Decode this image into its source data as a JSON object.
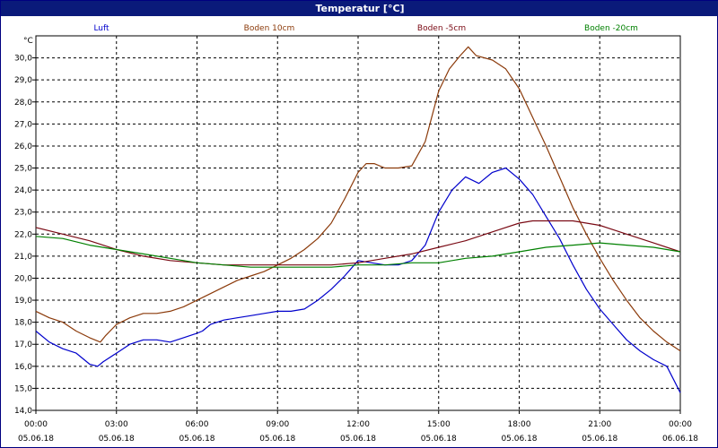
{
  "window": {
    "title": "Temperatur [°C]"
  },
  "chart_data": {
    "type": "line",
    "ylabel": "°C",
    "ylim": [
      14.0,
      31.0
    ],
    "y_ticks": [
      "14,0",
      "15,0",
      "16,0",
      "17,0",
      "18,0",
      "19,0",
      "20,0",
      "21,0",
      "22,0",
      "23,0",
      "24,0",
      "25,0",
      "26,0",
      "27,0",
      "28,0",
      "29,0",
      "30,0"
    ],
    "x_ticks": [
      {
        "time": "00:00",
        "date": "05.06.18"
      },
      {
        "time": "03:00",
        "date": "05.06.18"
      },
      {
        "time": "06:00",
        "date": "05.06.18"
      },
      {
        "time": "09:00",
        "date": "05.06.18"
      },
      {
        "time": "12:00",
        "date": "05.06.18"
      },
      {
        "time": "15:00",
        "date": "05.06.18"
      },
      {
        "time": "18:00",
        "date": "05.06.18"
      },
      {
        "time": "21:00",
        "date": "05.06.18"
      },
      {
        "time": "00:00",
        "date": "06.06.18"
      }
    ],
    "xlim_hours": [
      0,
      24
    ],
    "grid": true,
    "legend_position": "top",
    "series": [
      {
        "name": "Luft",
        "color": "#0000cc",
        "x": [
          0,
          0.5,
          1,
          1.5,
          2,
          2.3,
          2.5,
          3,
          3.5,
          4,
          4.5,
          5,
          5.5,
          6,
          6.2,
          6.5,
          7,
          7.5,
          8,
          8.5,
          9,
          9.5,
          10,
          10.5,
          11,
          11.5,
          12,
          12.5,
          13,
          13.5,
          14,
          14.5,
          15,
          15.5,
          16,
          16.5,
          17,
          17.5,
          18,
          18.5,
          19,
          19.5,
          20,
          20.5,
          21,
          21.5,
          22,
          22.5,
          23,
          23.5,
          24
        ],
        "values": [
          17.6,
          17.1,
          16.8,
          16.6,
          16.1,
          16.0,
          16.2,
          16.6,
          17.0,
          17.2,
          17.2,
          17.1,
          17.3,
          17.5,
          17.6,
          17.9,
          18.1,
          18.2,
          18.3,
          18.4,
          18.5,
          18.5,
          18.6,
          19.0,
          19.5,
          20.1,
          20.8,
          20.7,
          20.6,
          20.6,
          20.8,
          21.5,
          23.0,
          24.0,
          24.6,
          24.3,
          24.8,
          25.0,
          24.5,
          23.8,
          22.8,
          21.8,
          20.6,
          19.5,
          18.6,
          17.9,
          17.2,
          16.7,
          16.3,
          16.0,
          14.8
        ]
      },
      {
        "name": "Boden 10cm",
        "color": "#8b3a0a",
        "x": [
          0,
          0.5,
          1,
          1.5,
          2,
          2.4,
          2.6,
          3,
          3.5,
          4,
          4.5,
          5,
          5.5,
          6,
          6.5,
          7,
          7.5,
          8,
          8.5,
          9,
          9.5,
          10,
          10.5,
          11,
          11.5,
          12,
          12.3,
          12.6,
          13,
          13.5,
          14,
          14.5,
          15,
          15.4,
          15.8,
          16.1,
          16.4,
          17,
          17.5,
          18,
          18.5,
          19,
          19.5,
          20,
          20.5,
          21,
          21.5,
          22,
          22.5,
          23,
          23.5,
          24
        ],
        "values": [
          18.5,
          18.2,
          18.0,
          17.6,
          17.3,
          17.1,
          17.4,
          17.9,
          18.2,
          18.4,
          18.4,
          18.5,
          18.7,
          19.0,
          19.3,
          19.6,
          19.9,
          20.1,
          20.3,
          20.6,
          20.9,
          21.3,
          21.8,
          22.5,
          23.6,
          24.8,
          25.2,
          25.2,
          25.0,
          25.0,
          25.1,
          26.2,
          28.5,
          29.5,
          30.1,
          30.5,
          30.1,
          29.9,
          29.5,
          28.6,
          27.3,
          26.0,
          24.6,
          23.2,
          22.0,
          20.9,
          19.9,
          19.0,
          18.2,
          17.6,
          17.1,
          16.7
        ]
      },
      {
        "name": "Boden -5cm",
        "color": "#7a0a14",
        "x": [
          0,
          1,
          2,
          3,
          4,
          5,
          6,
          7,
          8,
          9,
          10,
          11,
          12,
          13,
          14,
          15,
          16,
          17,
          18,
          18.5,
          19,
          20,
          21,
          22,
          23,
          24
        ],
        "values": [
          22.3,
          22.0,
          21.7,
          21.3,
          21.0,
          20.8,
          20.7,
          20.6,
          20.6,
          20.6,
          20.6,
          20.6,
          20.7,
          20.9,
          21.1,
          21.4,
          21.7,
          22.1,
          22.5,
          22.6,
          22.6,
          22.6,
          22.4,
          22.0,
          21.6,
          21.2
        ]
      },
      {
        "name": "Boden -20cm",
        "color": "#008000",
        "x": [
          0,
          1,
          2,
          3,
          4,
          5,
          6,
          7,
          8,
          9,
          10,
          11,
          12,
          13,
          14,
          15,
          16,
          17,
          18,
          19,
          20,
          21,
          22,
          23,
          24
        ],
        "values": [
          21.9,
          21.8,
          21.5,
          21.3,
          21.1,
          20.9,
          20.7,
          20.6,
          20.5,
          20.5,
          20.5,
          20.5,
          20.6,
          20.6,
          20.7,
          20.7,
          20.9,
          21.0,
          21.2,
          21.4,
          21.5,
          21.6,
          21.5,
          21.4,
          21.2
        ]
      }
    ]
  }
}
